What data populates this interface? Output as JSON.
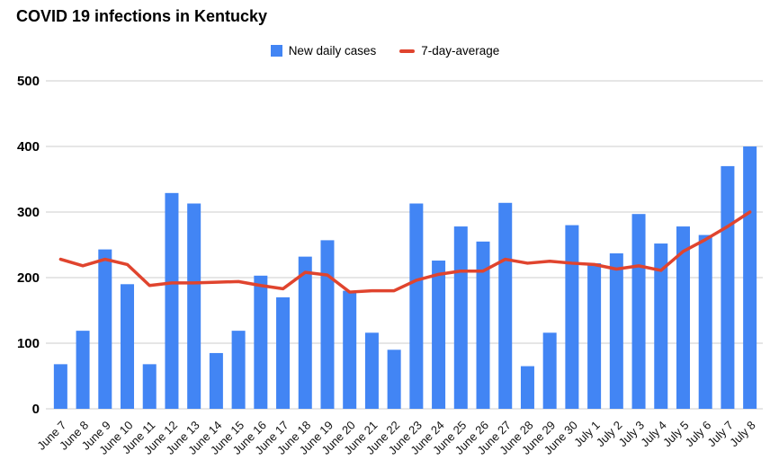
{
  "page": {
    "title": "COVID 19 infections in Kentucky"
  },
  "legend": [
    {
      "label": "New daily cases",
      "type": "square",
      "color": "#4285f4"
    },
    {
      "label": "7-day-average",
      "type": "line",
      "color": "#e0442e"
    }
  ],
  "chart_data": {
    "type": "bar",
    "title": "COVID 19 infections in Kentucky",
    "categories": [
      "June 7",
      "June 8",
      "June 9",
      "June 10",
      "June 11",
      "June 12",
      "June 13",
      "June 14",
      "June 15",
      "June 16",
      "June 17",
      "June 18",
      "June 19",
      "June 20",
      "June 21",
      "June 22",
      "June 23",
      "June 24",
      "June 25",
      "June 26",
      "June 27",
      "June 28",
      "June 29",
      "June 30",
      "July 1",
      "July 2",
      "July 3",
      "July 4",
      "July 5",
      "July 6",
      "July 7",
      "July 8"
    ],
    "series": [
      {
        "name": "New daily cases",
        "type": "bar",
        "color": "#4285f4",
        "values": [
          68,
          119,
          243,
          190,
          68,
          329,
          313,
          85,
          119,
          203,
          170,
          232,
          257,
          180,
          116,
          90,
          313,
          226,
          278,
          255,
          314,
          65,
          116,
          280,
          222,
          237,
          297,
          252,
          278,
          265,
          370,
          400
        ]
      },
      {
        "name": "7-day-average",
        "type": "line",
        "color": "#e0442e",
        "values": [
          228,
          218,
          228,
          220,
          188,
          192,
          192,
          193,
          194,
          188,
          183,
          208,
          204,
          178,
          180,
          180,
          196,
          205,
          210,
          210,
          228,
          222,
          225,
          222,
          220,
          213,
          218,
          211,
          240,
          258,
          278,
          300
        ]
      }
    ],
    "xlabel": "",
    "ylabel": "",
    "ylim": [
      0,
      500
    ],
    "yticks": [
      0,
      100,
      200,
      300,
      400,
      500
    ],
    "grid": true,
    "legend_position": "top"
  }
}
